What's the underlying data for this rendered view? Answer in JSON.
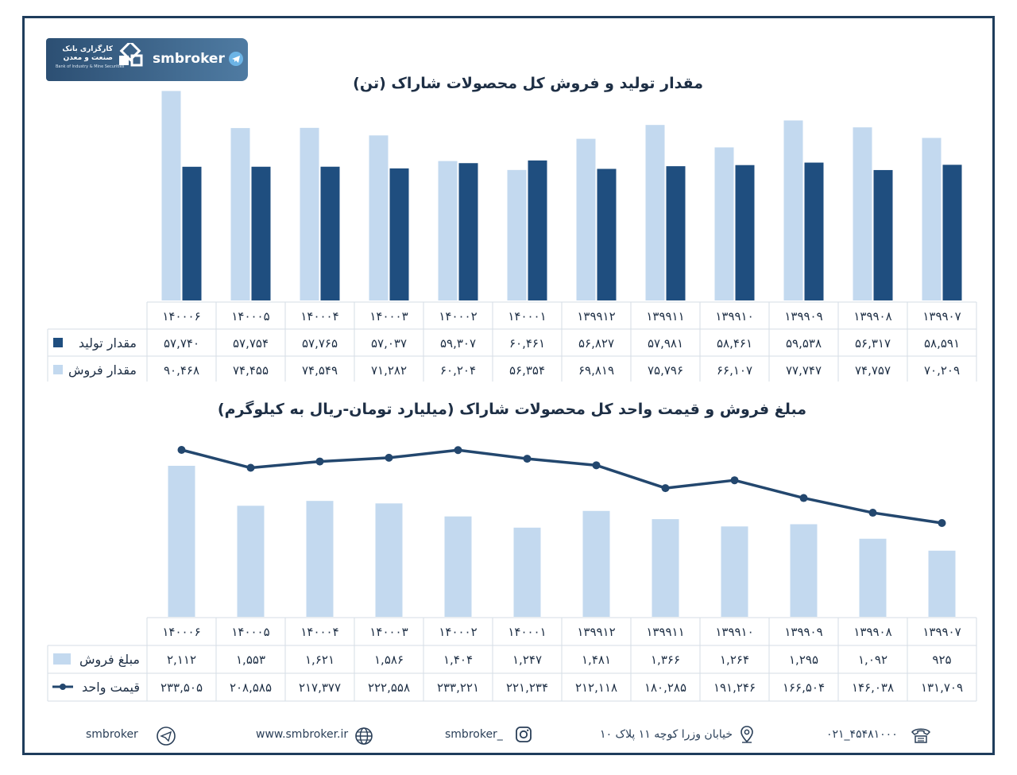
{
  "brand": {
    "name": "smbroker",
    "logo_text_line1": "کارگزاری بانک",
    "logo_text_line2": "صنعت و معدن",
    "logo_subtext": "Bank of Industry & Mine Securities"
  },
  "colors": {
    "dark": "#1f4e7f",
    "light": "#c3d9ef",
    "line": "#23476e",
    "frame": "#1f3d5c"
  },
  "chart_data": [
    {
      "type": "bar",
      "title": "مقدار تولید و فروش کل محصولات شاراک (تن)",
      "categories": [
        "۱۳۹۹۰۷",
        "۱۳۹۹۰۸",
        "۱۳۹۹۰۹",
        "۱۳۹۹۱۰",
        "۱۳۹۹۱۱",
        "۱۳۹۹۱۲",
        "۱۴۰۰۰۱",
        "۱۴۰۰۰۲",
        "۱۴۰۰۰۳",
        "۱۴۰۰۰۴",
        "۱۴۰۰۰۵",
        "۱۴۰۰۰۶"
      ],
      "series": [
        {
          "name": "مقدار تولید",
          "color": "#1f4e7f",
          "values": [
            58591,
            56317,
            59538,
            58461,
            57981,
            56827,
            60461,
            59307,
            57037,
            57765,
            57754,
            57740
          ],
          "labels": [
            "۵۸,۵۹۱",
            "۵۶,۳۱۷",
            "۵۹,۵۳۸",
            "۵۸,۴۶۱",
            "۵۷,۹۸۱",
            "۵۶,۸۲۷",
            "۶۰,۴۶۱",
            "۵۹,۳۰۷",
            "۵۷,۰۳۷",
            "۵۷,۷۶۵",
            "۵۷,۷۵۴",
            "۵۷,۷۴۰"
          ]
        },
        {
          "name": "مقدار فروش",
          "color": "#c3d9ef",
          "values": [
            70209,
            74757,
            77747,
            66107,
            75796,
            69819,
            56354,
            60204,
            71282,
            74549,
            74455,
            90468
          ],
          "labels": [
            "۷۰,۲۰۹",
            "۷۴,۷۵۷",
            "۷۷,۷۴۷",
            "۶۶,۱۰۷",
            "۷۵,۷۹۶",
            "۶۹,۸۱۹",
            "۵۶,۳۵۴",
            "۶۰,۲۰۴",
            "۷۱,۲۸۲",
            "۷۴,۵۴۹",
            "۷۴,۴۵۵",
            "۹۰,۴۶۸"
          ]
        }
      ],
      "ylim": [
        0,
        92000
      ],
      "grid": false,
      "legend": "data-table"
    },
    {
      "type": "bar+line",
      "title": "مبلغ فروش و قیمت واحد کل محصولات شاراک (میلیارد تومان-ریال به کیلوگرم)",
      "categories": [
        "۱۳۹۹۰۷",
        "۱۳۹۹۰۸",
        "۱۳۹۹۰۹",
        "۱۳۹۹۱۰",
        "۱۳۹۹۱۱",
        "۱۳۹۹۱۲",
        "۱۴۰۰۰۱",
        "۱۴۰۰۰۲",
        "۱۴۰۰۰۳",
        "۱۴۰۰۰۴",
        "۱۴۰۰۰۵",
        "۱۴۰۰۰۶"
      ],
      "series": [
        {
          "name": "مبلغ فروش",
          "kind": "bar",
          "color": "#c3d9ef",
          "values": [
            925,
            1092,
            1295,
            1264,
            1366,
            1481,
            1247,
            1404,
            1586,
            1621,
            1553,
            2112
          ],
          "labels": [
            "۹۲۵",
            "۱,۰۹۲",
            "۱,۲۹۵",
            "۱,۲۶۴",
            "۱,۳۶۶",
            "۱,۴۸۱",
            "۱,۲۴۷",
            "۱,۴۰۴",
            "۱,۵۸۶",
            "۱,۶۲۱",
            "۱,۵۵۳",
            "۲,۱۱۲"
          ]
        },
        {
          "name": "قیمت واحد",
          "kind": "line",
          "color": "#23476e",
          "values": [
            131709,
            146038,
            166504,
            191246,
            180285,
            212118,
            221234,
            233221,
            222558,
            217377,
            208585,
            233505
          ],
          "labels": [
            "۱۳۱,۷۰۹",
            "۱۴۶,۰۳۸",
            "۱۶۶,۵۰۴",
            "۱۹۱,۲۴۶",
            "۱۸۰,۲۸۵",
            "۲۱۲,۱۱۸",
            "۲۲۱,۲۳۴",
            "۲۳۳,۲۲۱",
            "۲۲۲,۵۵۸",
            "۲۱۷,۳۷۷",
            "۲۰۸,۵۸۵",
            "۲۳۳,۵۰۵"
          ]
        }
      ],
      "grid": false,
      "legend": "data-table"
    }
  ],
  "footer": {
    "telegram": "smbroker",
    "website": "www.smbroker.ir",
    "instagram": "smbroker_",
    "address": "خیابان وزرا کوچه ۱۱ پلاک ۱۰",
    "phone": "۰۲۱_۴۵۴۸۱۰۰۰"
  }
}
